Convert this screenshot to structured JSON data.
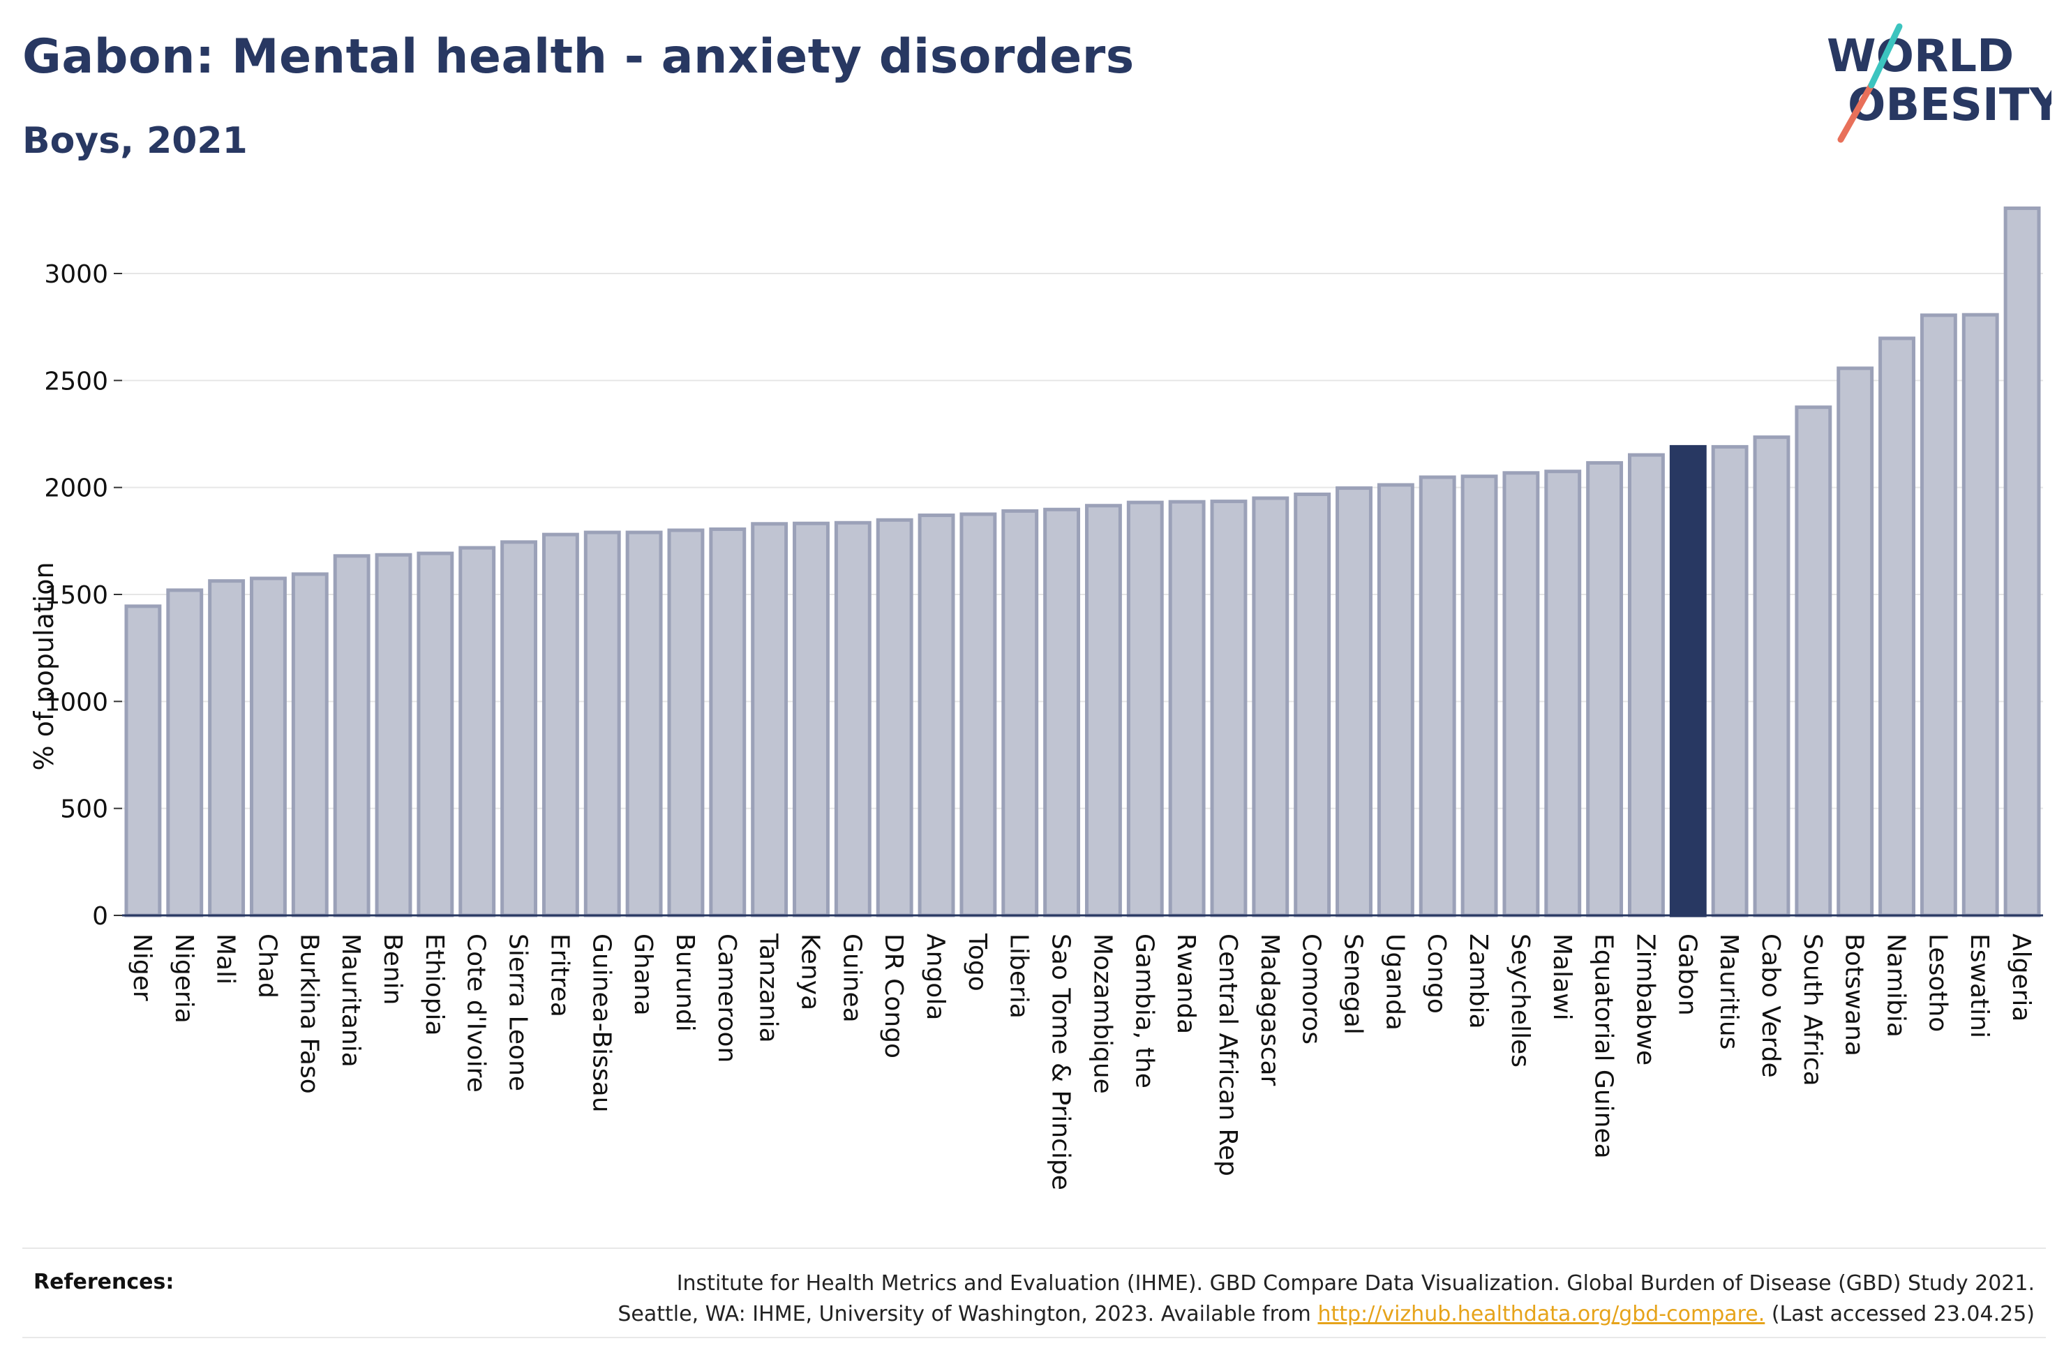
{
  "header": {
    "title": "Gabon: Mental health - anxiety disorders",
    "subtitle": "Boys, 2021"
  },
  "logo": {
    "line1": "WORLD",
    "line2": "OBESITY",
    "text_color": "#283862",
    "slash_colors": [
      "#e8705a",
      "#3cc4bf"
    ]
  },
  "colors": {
    "bar": "#c0c4d2",
    "bar_border": "#9ba1b8",
    "highlight": "#283862",
    "grid": "#e6e6e6",
    "axis": "#283862"
  },
  "chart_data": {
    "type": "bar",
    "ylabel": "% of population",
    "xlabel": "",
    "ylim": [
      0,
      3300
    ],
    "yticks": [
      0,
      500,
      1000,
      1500,
      2000,
      2500,
      3000
    ],
    "grid": true,
    "highlight": "Gabon",
    "categories": [
      "Niger",
      "Nigeria",
      "Mali",
      "Chad",
      "Burkina Faso",
      "Mauritania",
      "Benin",
      "Ethiopia",
      "Cote d'Ivoire",
      "Sierra Leone",
      "Eritrea",
      "Guinea-Bissau",
      "Ghana",
      "Burundi",
      "Cameroon",
      "Tanzania",
      "Kenya",
      "Guinea",
      "DR Congo",
      "Angola",
      "Togo",
      "Liberia",
      "Sao Tome & Principe",
      "Mozambique",
      "Gambia, the",
      "Rwanda",
      "Central African Rep",
      "Madagascar",
      "Comoros",
      "Senegal",
      "Uganda",
      "Congo",
      "Zambia",
      "Seychelles",
      "Malawi",
      "Equatorial Guinea",
      "Zimbabwe",
      "Gabon",
      "Mauritius",
      "Cabo Verde",
      "South Africa",
      "Botswana",
      "Namibia",
      "Lesotho",
      "Eswatini",
      "Algeria"
    ],
    "values": [
      1445,
      1520,
      1563,
      1575,
      1595,
      1680,
      1685,
      1692,
      1718,
      1745,
      1780,
      1790,
      1790,
      1800,
      1805,
      1830,
      1832,
      1835,
      1848,
      1870,
      1875,
      1890,
      1897,
      1915,
      1930,
      1933,
      1935,
      1950,
      1968,
      1997,
      2012,
      2048,
      2052,
      2068,
      2075,
      2115,
      2152,
      2190,
      2190,
      2235,
      2375,
      2557,
      2697,
      2805,
      2807,
      3305
    ]
  },
  "footer": {
    "references_label": "References:",
    "ref_line1": "Institute for Health Metrics and Evaluation (IHME). GBD Compare Data Visualization. Global Burden of Disease (GBD) Study 2021.",
    "ref_line2_prefix": "Seattle, WA: IHME, University of Washington, 2023. Available from",
    "ref_link": "http://vizhub.healthdata.org/gbd-compare.",
    "ref_line2_suffix": "(Last accessed 23.04.25)"
  }
}
